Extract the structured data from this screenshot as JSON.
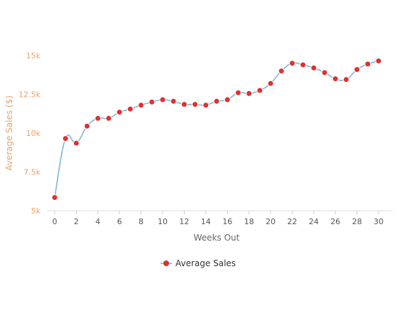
{
  "chart_data": {
    "type": "line",
    "title": "",
    "xlabel": "Weeks Out",
    "ylabel": "Average Sales ($)",
    "xlim": [
      0,
      30
    ],
    "ylim": [
      5000,
      15000
    ],
    "x_ticks": [
      0,
      2,
      4,
      6,
      8,
      10,
      12,
      14,
      16,
      18,
      20,
      22,
      24,
      26,
      28,
      30
    ],
    "x_tick_labels": [
      "0",
      "2",
      "4",
      "6",
      "8",
      "10",
      "12",
      "14",
      "16",
      "18",
      "20",
      "22",
      "24",
      "26",
      "28",
      "30"
    ],
    "y_ticks": [
      5000,
      7500,
      10000,
      12500,
      15000
    ],
    "y_tick_labels": [
      "5k",
      "7.5k",
      "10k",
      "12.5k",
      "15k"
    ],
    "grid": false,
    "legend_position": "bottom-center",
    "x": [
      0,
      1,
      2,
      3,
      4,
      5,
      6,
      7,
      8,
      9,
      10,
      11,
      12,
      13,
      14,
      15,
      16,
      17,
      18,
      19,
      20,
      21,
      22,
      23,
      24,
      25,
      26,
      27,
      28,
      29,
      30
    ],
    "series": [
      {
        "name": "Average Sales",
        "values": [
          5850,
          9650,
          9350,
          10450,
          10950,
          10950,
          11350,
          11550,
          11800,
          12000,
          12150,
          12050,
          11850,
          11850,
          11800,
          12050,
          12150,
          12600,
          12550,
          12750,
          13200,
          14000,
          14500,
          14400,
          14200,
          13900,
          13500,
          13450,
          14100,
          14450,
          14650
        ],
        "line_color": "#7eb6d9",
        "marker_color": "#e03030"
      }
    ],
    "colors": {
      "axis_line": "#dddddd",
      "tick_mark": "#cccccc",
      "y_label": "#e8a36c",
      "x_label": "#666666"
    }
  }
}
